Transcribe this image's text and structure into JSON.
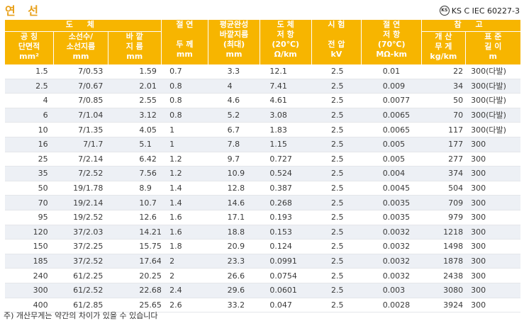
{
  "title": "연 선",
  "standard": {
    "logo": "KS",
    "text": "KS C IEC 60227-3"
  },
  "header": {
    "conductor_group": "도 체",
    "reference_group": "참 고",
    "columns": [
      {
        "l1": "공 칭",
        "l2": "단면적",
        "unit": "mm²"
      },
      {
        "l1": "소선수/",
        "l2": "소선지름",
        "unit": "mm"
      },
      {
        "l1": "바 깥",
        "l2": "지 름",
        "unit": "mm"
      },
      {
        "l1": "절 연",
        "l2": "두 께",
        "unit": "mm"
      },
      {
        "l1": "평균완성",
        "l2": "바깥지름",
        "l3": "(최대)",
        "unit": "mm"
      },
      {
        "l1": "도 체",
        "l2": "저 항",
        "l3": "(20℃)",
        "unit": "Ω/km"
      },
      {
        "l1": "시 험",
        "l2": "전 압",
        "unit": "kV"
      },
      {
        "l1": "절 연",
        "l2": "저 항",
        "l3": "(70℃)",
        "unit": "MΩ-km"
      },
      {
        "l1": "개 산",
        "l2": "무 게",
        "unit": "kg/km"
      },
      {
        "l1": "표 준",
        "l2": "길 이",
        "unit": "m"
      }
    ]
  },
  "rows": [
    [
      "1.5",
      "7/0.53",
      "1.59",
      "0.7",
      "3.3",
      "12.1",
      "2.5",
      "0.01",
      "22",
      "300(다발)"
    ],
    [
      "2.5",
      "7/0.67",
      "2.01",
      "0.8",
      "4",
      "7.41",
      "2.5",
      "0.009",
      "34",
      "300(다발)"
    ],
    [
      "4",
      "7/0.85",
      "2.55",
      "0.8",
      "4.6",
      "4.61",
      "2.5",
      "0.0077",
      "50",
      "300(다발)"
    ],
    [
      "6",
      "7/1.04",
      "3.12",
      "0.8",
      "5.2",
      "3.08",
      "2.5",
      "0.0065",
      "70",
      "300(다발)"
    ],
    [
      "10",
      "7/1.35",
      "4.05",
      "1",
      "6.7",
      "1.83",
      "2.5",
      "0.0065",
      "117",
      "300(다발)"
    ],
    [
      "16",
      "7/1.7",
      "5.1",
      "1",
      "7.8",
      "1.15",
      "2.5",
      "0.005",
      "177",
      "300"
    ],
    [
      "25",
      "7/2.14",
      "6.42",
      "1.2",
      "9.7",
      "0.727",
      "2.5",
      "0.005",
      "277",
      "300"
    ],
    [
      "35",
      "7/2.52",
      "7.56",
      "1.2",
      "10.9",
      "0.524",
      "2.5",
      "0.004",
      "374",
      "300"
    ],
    [
      "50",
      "19/1.78",
      "8.9",
      "1.4",
      "12.8",
      "0.387",
      "2.5",
      "0.0045",
      "504",
      "300"
    ],
    [
      "70",
      "19/2.14",
      "10.7",
      "1.4",
      "14.6",
      "0.268",
      "2.5",
      "0.0035",
      "709",
      "300"
    ],
    [
      "95",
      "19/2.52",
      "12.6",
      "1.6",
      "17.1",
      "0.193",
      "2.5",
      "0.0035",
      "979",
      "300"
    ],
    [
      "120",
      "37/2.03",
      "14.21",
      "1.6",
      "18.8",
      "0.153",
      "2.5",
      "0.0032",
      "1218",
      "300"
    ],
    [
      "150",
      "37/2.25",
      "15.75",
      "1.8",
      "20.9",
      "0.124",
      "2.5",
      "0.0032",
      "1498",
      "300"
    ],
    [
      "185",
      "37/2.52",
      "17.64",
      "2",
      "23.3",
      "0.0991",
      "2.5",
      "0.0032",
      "1878",
      "300"
    ],
    [
      "240",
      "61/2.25",
      "20.25",
      "2",
      "26.6",
      "0.0754",
      "2.5",
      "0.0032",
      "2438",
      "300"
    ],
    [
      "300",
      "61/2.52",
      "22.68",
      "2.4",
      "29.6",
      "0.0601",
      "2.5",
      "0.003",
      "3080",
      "300"
    ],
    [
      "400",
      "61/2.85",
      "25.65",
      "2.6",
      "33.2",
      "0.047",
      "2.5",
      "0.0028",
      "3924",
      "300"
    ]
  ],
  "note": "주) 개산무게는 약간의 차이가 있을 수 있습니다",
  "colors": {
    "accent": "#f7b500",
    "title": "#e8a01a",
    "stripe": "#edf0f5"
  }
}
